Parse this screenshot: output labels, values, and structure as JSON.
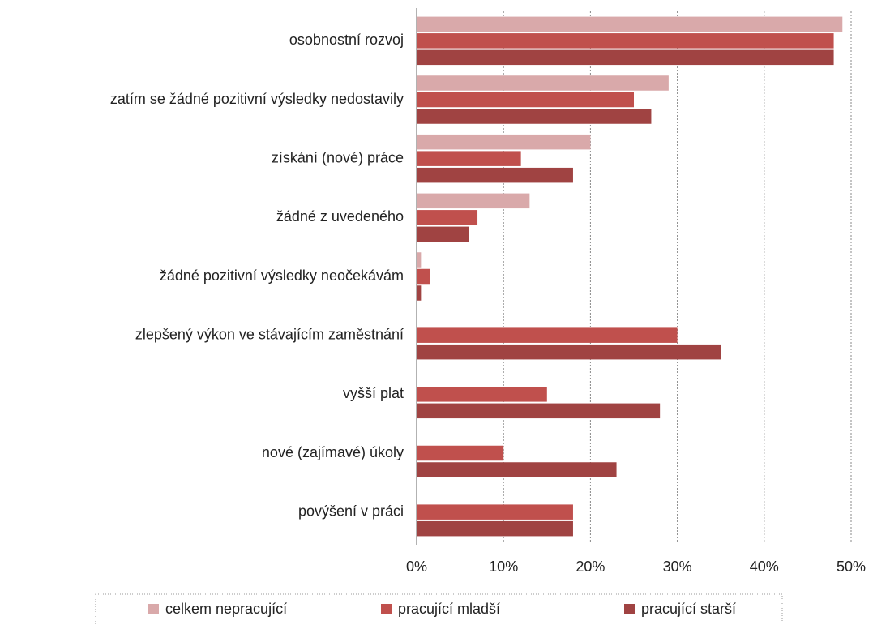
{
  "chart_data": {
    "type": "barh",
    "categories": [
      "osobnostní rozvoj",
      "zatím se žádné pozitivní výsledky nedostavily",
      "získání (nové) práce",
      "žádné z uvedeného",
      "žádné pozitivní výsledky neočekávám",
      "zlepšený výkon ve stávajícím zaměstnání",
      "vyšší plat",
      "nové (zajímavé) úkoly",
      "povýšení v práci"
    ],
    "series": [
      {
        "name": "celkem nepracující",
        "color": "#d9a9aa",
        "values": [
          49,
          29,
          20,
          13,
          0.5,
          null,
          null,
          null,
          null
        ]
      },
      {
        "name": "pracující mladší",
        "color": "#c0504d",
        "values": [
          48,
          25,
          12,
          7,
          1.5,
          30,
          15,
          10,
          18
        ]
      },
      {
        "name": "pracující starší",
        "color": "#a04342",
        "values": [
          48,
          27,
          18,
          6,
          0.5,
          35,
          28,
          23,
          18
        ]
      }
    ],
    "xlim": [
      0,
      50
    ],
    "xticks": [
      {
        "value": 0,
        "label": "0%"
      },
      {
        "value": 10,
        "label": "10%"
      },
      {
        "value": 20,
        "label": "20%"
      },
      {
        "value": 30,
        "label": "30%"
      },
      {
        "value": 40,
        "label": "40%"
      },
      {
        "value": 50,
        "label": "50%"
      }
    ],
    "grid": true,
    "legend": "bottom"
  }
}
